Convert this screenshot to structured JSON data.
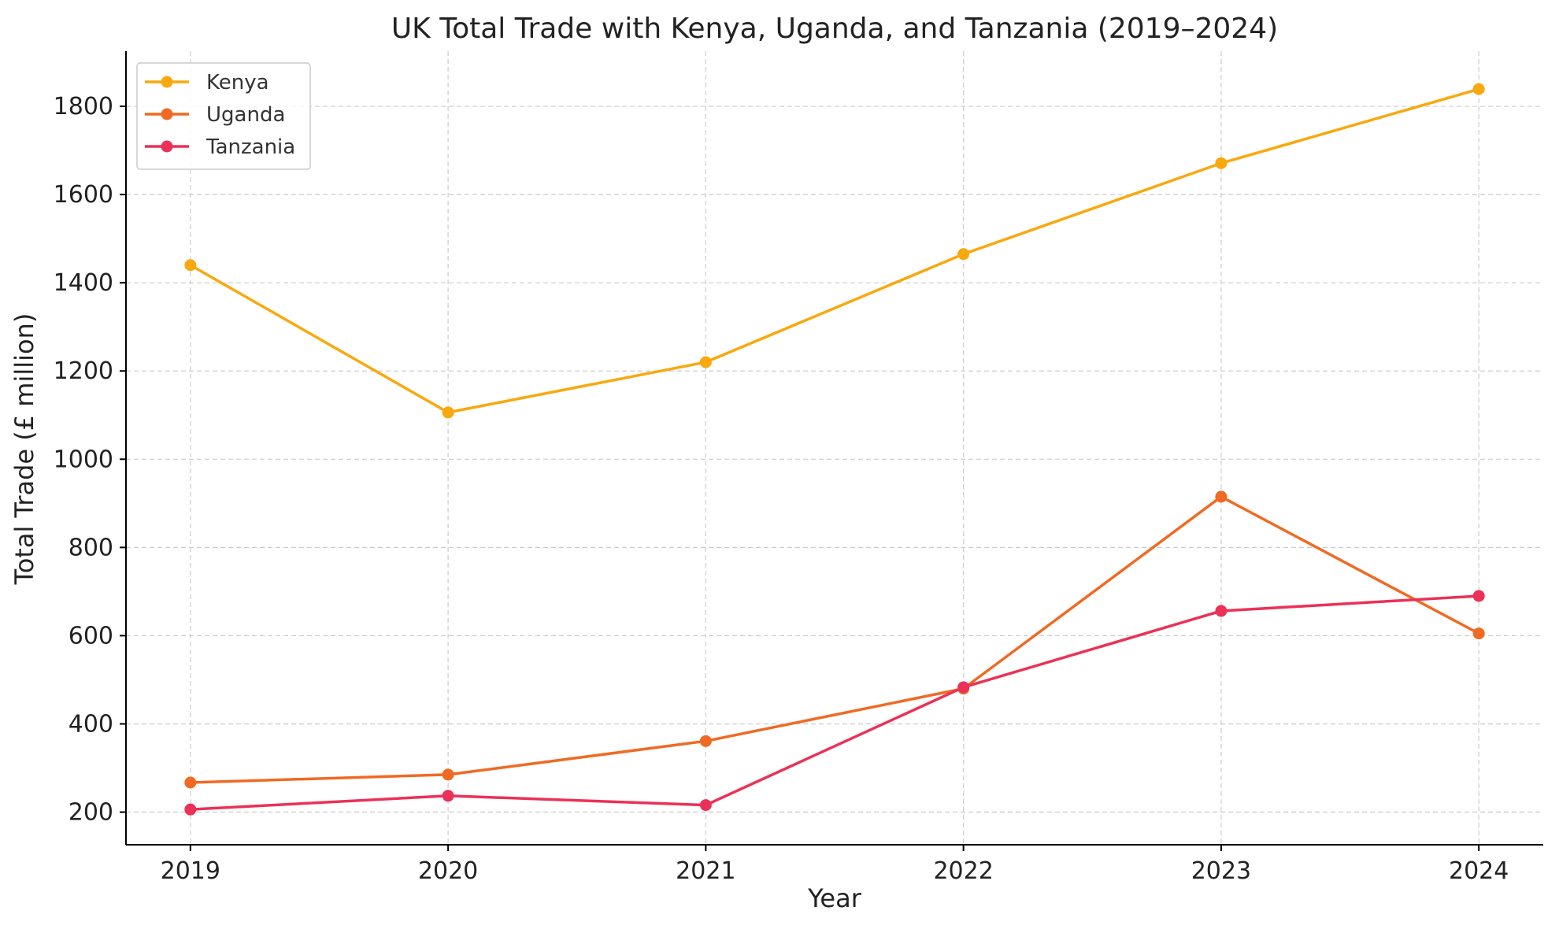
{
  "colors": {
    "kenya": "#F9A80E",
    "uganda": "#F06A23",
    "tanzania": "#EB3157",
    "grid": "#cccccc",
    "axis": "#000000"
  },
  "chart_data": {
    "type": "line",
    "title": "UK Total Trade with Kenya, Uganda, and Tanzania (2019–2024)",
    "xlabel": "Year",
    "ylabel": "Total Trade (£ million)",
    "x": [
      2019,
      2020,
      2021,
      2022,
      2023,
      2024
    ],
    "x_tick_labels": [
      "2019",
      "2020",
      "2021",
      "2022",
      "2023",
      "2024"
    ],
    "y_ticks": [
      200,
      400,
      600,
      800,
      1000,
      1200,
      1400,
      1600,
      1800
    ],
    "y_tick_labels": [
      "200",
      "400",
      "600",
      "800",
      "1000",
      "1200",
      "1400",
      "1600",
      "1800"
    ],
    "xlim": [
      2018.75,
      2024.25
    ],
    "ylim": [
      126,
      1925
    ],
    "grid": true,
    "legend_position": "top-left",
    "series": [
      {
        "name": "Kenya",
        "color_key": "kenya",
        "values": [
          1440,
          1106,
          1220,
          1465,
          1671,
          1839
        ]
      },
      {
        "name": "Uganda",
        "color_key": "uganda",
        "values": [
          267,
          285,
          361,
          480,
          915,
          605
        ]
      },
      {
        "name": "Tanzania",
        "color_key": "tanzania",
        "values": [
          206,
          237,
          216,
          483,
          656,
          690
        ]
      }
    ]
  }
}
